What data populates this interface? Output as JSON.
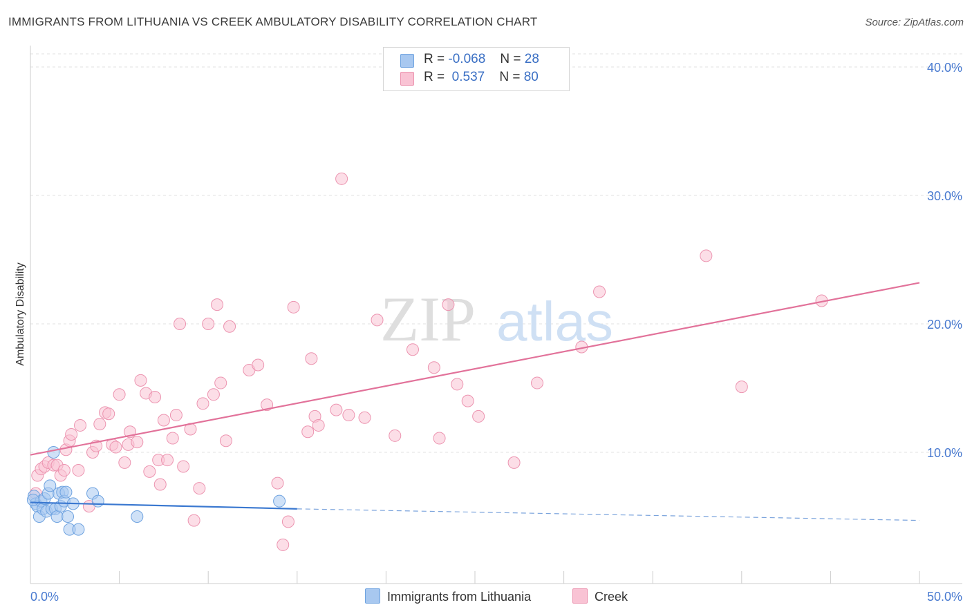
{
  "title": "IMMIGRANTS FROM LITHUANIA VS CREEK AMBULATORY DISABILITY CORRELATION CHART",
  "source": "Source: ZipAtlas.com",
  "legend": {
    "rows": [
      {
        "r_label": "R =",
        "r_value": "-0.068",
        "n_label": "N =",
        "n_value": "28",
        "color": "#a8c8f0",
        "border": "#6fa3e0"
      },
      {
        "r_label": "R =",
        "r_value": " 0.537",
        "n_label": "N =",
        "n_value": "80",
        "color": "#f9c3d4",
        "border": "#ec94b0"
      }
    ]
  },
  "watermark": {
    "zip": "ZIP",
    "atlas": "atlas"
  },
  "chart_data": {
    "type": "scatter",
    "title": "IMMIGRANTS FROM LITHUANIA VS CREEK AMBULATORY DISABILITY CORRELATION CHART",
    "xlabel": "",
    "ylabel": "Ambulatory Disability",
    "xlim": [
      0,
      50
    ],
    "ylim": [
      0,
      40
    ],
    "x_tick_labels": [
      "0.0%",
      "50.0%"
    ],
    "y_ticks": [
      10,
      20,
      30,
      40
    ],
    "y_tick_labels": [
      "10.0%",
      "20.0%",
      "30.0%",
      "40.0%"
    ],
    "grid": true,
    "legend_position": "top-center",
    "series": [
      {
        "name": "Immigrants from Lithuania",
        "color": "#6fa3e0",
        "fill": "#a8c8f0",
        "trend": {
          "x": [
            0,
            15
          ],
          "y": [
            6.1,
            5.6
          ],
          "dashed_to": [
            50,
            4.7
          ]
        },
        "points": [
          [
            0.2,
            6.6
          ],
          [
            0.3,
            6.0
          ],
          [
            0.4,
            5.8
          ],
          [
            0.5,
            5.0
          ],
          [
            0.6,
            6.2
          ],
          [
            0.7,
            5.6
          ],
          [
            0.8,
            6.4
          ],
          [
            0.9,
            5.4
          ],
          [
            1.0,
            6.8
          ],
          [
            1.1,
            7.4
          ],
          [
            1.2,
            5.6
          ],
          [
            1.3,
            10.0
          ],
          [
            1.4,
            5.6
          ],
          [
            1.5,
            5.0
          ],
          [
            1.6,
            6.8
          ],
          [
            1.7,
            5.8
          ],
          [
            1.8,
            6.9
          ],
          [
            1.9,
            6.2
          ],
          [
            2.0,
            6.9
          ],
          [
            2.1,
            5.0
          ],
          [
            2.2,
            4.0
          ],
          [
            2.4,
            6.0
          ],
          [
            2.7,
            4.0
          ],
          [
            3.5,
            6.8
          ],
          [
            3.8,
            6.2
          ],
          [
            6.0,
            5.0
          ],
          [
            14.0,
            6.2
          ],
          [
            0.15,
            6.3
          ]
        ]
      },
      {
        "name": "Creek",
        "color": "#ec94b0",
        "fill": "#f9c3d4",
        "trend": {
          "x": [
            0,
            50
          ],
          "y": [
            9.8,
            23.2
          ]
        },
        "points": [
          [
            0.3,
            6.8
          ],
          [
            0.4,
            8.2
          ],
          [
            0.6,
            8.7
          ],
          [
            0.8,
            8.9
          ],
          [
            1.0,
            9.2
          ],
          [
            1.3,
            9.0
          ],
          [
            1.5,
            9.0
          ],
          [
            1.7,
            8.2
          ],
          [
            1.9,
            8.6
          ],
          [
            2.0,
            10.2
          ],
          [
            2.2,
            10.9
          ],
          [
            2.3,
            11.4
          ],
          [
            2.7,
            8.6
          ],
          [
            2.8,
            12.1
          ],
          [
            3.3,
            5.8
          ],
          [
            3.5,
            10.0
          ],
          [
            3.7,
            10.5
          ],
          [
            3.9,
            12.2
          ],
          [
            4.2,
            13.1
          ],
          [
            4.4,
            13.0
          ],
          [
            4.6,
            10.6
          ],
          [
            4.8,
            10.4
          ],
          [
            5.0,
            14.5
          ],
          [
            5.3,
            9.2
          ],
          [
            5.5,
            10.6
          ],
          [
            5.6,
            11.6
          ],
          [
            6.0,
            10.8
          ],
          [
            6.2,
            15.6
          ],
          [
            6.5,
            14.6
          ],
          [
            6.7,
            8.5
          ],
          [
            7.0,
            14.3
          ],
          [
            7.2,
            9.4
          ],
          [
            7.3,
            7.5
          ],
          [
            7.5,
            12.5
          ],
          [
            7.7,
            9.4
          ],
          [
            8.0,
            11.1
          ],
          [
            8.2,
            12.9
          ],
          [
            8.4,
            20.0
          ],
          [
            8.6,
            8.9
          ],
          [
            9.0,
            11.8
          ],
          [
            9.2,
            4.7
          ],
          [
            9.5,
            7.2
          ],
          [
            9.7,
            13.8
          ],
          [
            10.0,
            20.0
          ],
          [
            10.3,
            14.5
          ],
          [
            10.5,
            21.5
          ],
          [
            10.7,
            15.4
          ],
          [
            11.0,
            10.9
          ],
          [
            11.2,
            19.8
          ],
          [
            12.3,
            16.4
          ],
          [
            12.8,
            16.8
          ],
          [
            13.3,
            13.7
          ],
          [
            13.9,
            7.6
          ],
          [
            14.2,
            2.8
          ],
          [
            14.5,
            4.6
          ],
          [
            14.8,
            21.3
          ],
          [
            15.6,
            11.6
          ],
          [
            15.8,
            17.3
          ],
          [
            16.0,
            12.8
          ],
          [
            16.2,
            12.1
          ],
          [
            17.2,
            13.3
          ],
          [
            17.5,
            31.3
          ],
          [
            17.9,
            12.9
          ],
          [
            18.8,
            12.7
          ],
          [
            19.5,
            20.3
          ],
          [
            20.5,
            11.3
          ],
          [
            21.5,
            18.0
          ],
          [
            22.7,
            16.6
          ],
          [
            23.0,
            11.1
          ],
          [
            23.5,
            21.5
          ],
          [
            24.0,
            15.3
          ],
          [
            24.6,
            14.0
          ],
          [
            25.2,
            12.8
          ],
          [
            27.2,
            9.2
          ],
          [
            28.5,
            15.4
          ],
          [
            31.0,
            18.2
          ],
          [
            32.0,
            22.5
          ],
          [
            38.0,
            25.3
          ],
          [
            40.0,
            15.1
          ],
          [
            44.5,
            21.8
          ]
        ]
      }
    ]
  },
  "bottom_legend": [
    {
      "label": "Immigrants from Lithuania",
      "fill": "#a8c8f0",
      "border": "#6fa3e0"
    },
    {
      "label": "Creek",
      "fill": "#f9c3d4",
      "border": "#ec94b0"
    }
  ]
}
